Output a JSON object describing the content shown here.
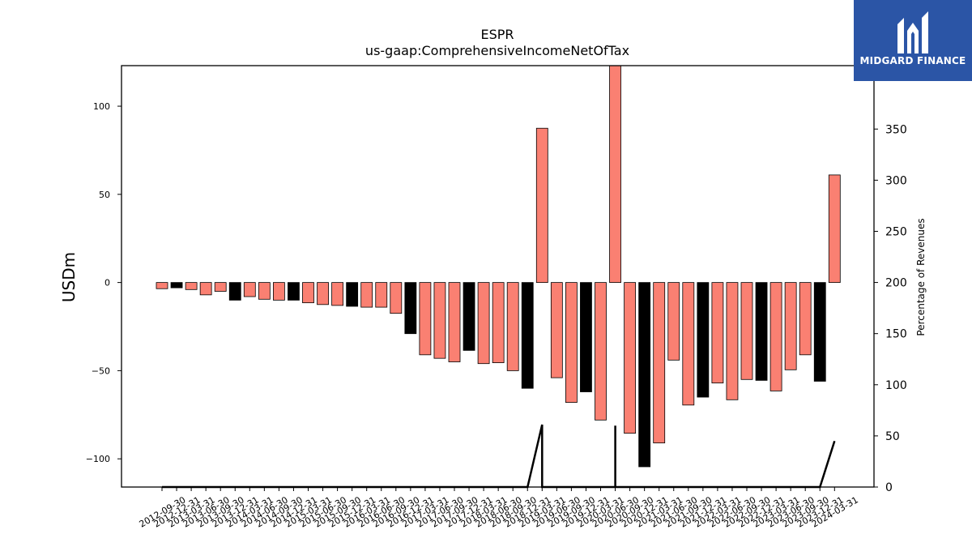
{
  "brand": {
    "name": "MIDGARD FINANCE",
    "logo_icon": "midgard-logo-icon"
  },
  "colors": {
    "bar_default": "#fa8072",
    "bar_highlight": "#000000",
    "line": "#000000"
  },
  "chart_data": {
    "type": "bar",
    "title": "ESPR",
    "subtitle": "us-gaap:ComprehensiveIncomeNetOfTax",
    "ylabel": "USDm",
    "y2label": "Percentage of Revenues",
    "ylim": [
      -116,
      123
    ],
    "y2lim": [
      0,
      412
    ],
    "yticks": [
      -100,
      -50,
      0,
      50,
      100
    ],
    "y2ticks": [
      0,
      50,
      100,
      150,
      200,
      250,
      300,
      350
    ],
    "grid": false,
    "categories": [
      "2012-09-30",
      "2012-12-31",
      "2013-03-31",
      "2013-06-30",
      "2013-09-30",
      "2013-12-31",
      "2014-03-31",
      "2014-06-30",
      "2014-09-30",
      "2014-12-31",
      "2015-03-31",
      "2015-06-30",
      "2015-09-30",
      "2015-12-31",
      "2016-03-31",
      "2016-06-30",
      "2016-09-30",
      "2016-12-31",
      "2017-03-31",
      "2017-06-30",
      "2017-09-30",
      "2017-12-31",
      "2018-03-31",
      "2018-06-30",
      "2018-09-30",
      "2018-12-31",
      "2019-03-31",
      "2019-06-30",
      "2019-09-30",
      "2019-12-31",
      "2020-03-31",
      "2020-06-30",
      "2020-09-30",
      "2020-12-31",
      "2021-03-31",
      "2021-06-30",
      "2021-09-30",
      "2021-12-31",
      "2022-03-31",
      "2022-06-30",
      "2022-09-30",
      "2022-12-31",
      "2023-03-31",
      "2023-06-30",
      "2023-09-30",
      "2023-12-31",
      "2024-03-31"
    ],
    "series": [
      {
        "type": "bar",
        "values": [
          -3.5,
          -3,
          -4,
          -7,
          -5,
          -10,
          -8,
          -9.5,
          -10,
          -10,
          -11.5,
          -12.5,
          -13,
          -13.5,
          -14,
          -14,
          -17.5,
          -29,
          -41,
          -43,
          -45,
          -38.5,
          -46,
          -45.5,
          -50,
          -60,
          87.5,
          -54,
          -68,
          -62,
          -78,
          123,
          -85.5,
          -104.5,
          -91,
          -44,
          -69.5,
          -65,
          -57,
          -66.5,
          -55,
          -55.5,
          -61.5,
          -49.5,
          -41,
          -56,
          61
        ],
        "highlight": [
          false,
          true,
          false,
          false,
          false,
          true,
          false,
          false,
          false,
          true,
          false,
          false,
          false,
          true,
          false,
          false,
          false,
          true,
          false,
          false,
          false,
          true,
          false,
          false,
          false,
          true,
          false,
          false,
          false,
          true,
          false,
          false,
          false,
          true,
          false,
          false,
          false,
          true,
          false,
          false,
          false,
          true,
          false,
          false,
          false,
          true,
          false
        ]
      },
      {
        "type": "line",
        "axis": "right",
        "points": [
          [
            0,
            0
          ],
          [
            25,
            0
          ],
          [
            26,
            61
          ],
          [
            26,
            0
          ],
          [
            31,
            0
          ],
          [
            31,
            60
          ],
          [
            31,
            0
          ],
          [
            45,
            0
          ],
          [
            46,
            45
          ]
        ]
      }
    ]
  }
}
